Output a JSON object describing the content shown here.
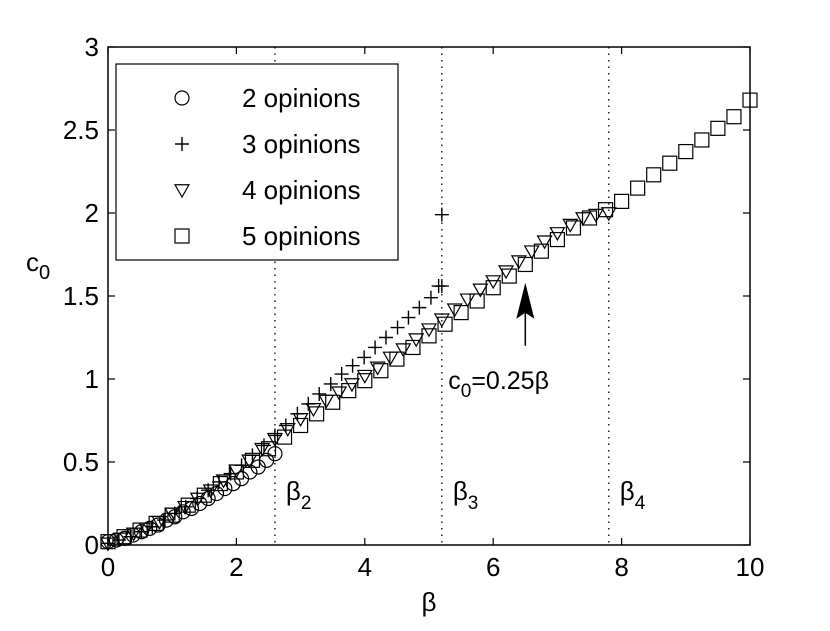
{
  "chart_data": {
    "type": "scatter",
    "xlabel": "β",
    "ylabel": "c",
    "ylabel_sub": "0",
    "xlim": [
      0,
      10
    ],
    "ylim": [
      0,
      3
    ],
    "x_ticks": [
      {
        "value": 0,
        "label": "0"
      },
      {
        "value": 2,
        "label": "2"
      },
      {
        "value": 4,
        "label": "4"
      },
      {
        "value": 6,
        "label": "6"
      },
      {
        "value": 8,
        "label": "8"
      },
      {
        "value": 10,
        "label": "10"
      }
    ],
    "y_ticks": [
      {
        "value": 0,
        "label": "0"
      },
      {
        "value": 0.5,
        "label": "0.5"
      },
      {
        "value": 1,
        "label": "1"
      },
      {
        "value": 1.5,
        "label": "1.5"
      },
      {
        "value": 2,
        "label": "2"
      },
      {
        "value": 2.5,
        "label": "2.5"
      },
      {
        "value": 3,
        "label": "3"
      }
    ],
    "grid": false,
    "legend_position": "top-left",
    "series": [
      {
        "name": "2 opinions",
        "marker": "circle",
        "x": [
          0.0,
          0.13,
          0.26,
          0.39,
          0.52,
          0.65,
          0.78,
          0.91,
          1.04,
          1.17,
          1.3,
          1.43,
          1.56,
          1.69,
          1.82,
          1.95,
          2.08,
          2.21,
          2.34,
          2.47,
          2.6
        ],
        "y": [
          0.02,
          0.03,
          0.04,
          0.06,
          0.08,
          0.1,
          0.12,
          0.15,
          0.17,
          0.2,
          0.22,
          0.25,
          0.28,
          0.31,
          0.34,
          0.37,
          0.4,
          0.44,
          0.47,
          0.51,
          0.55
        ]
      },
      {
        "name": "3 opinions",
        "marker": "plus",
        "x": [
          0.0,
          0.17,
          0.35,
          0.52,
          0.69,
          0.87,
          1.04,
          1.21,
          1.39,
          1.56,
          1.73,
          1.91,
          2.08,
          2.25,
          2.43,
          2.6,
          2.77,
          2.95,
          3.12,
          3.29,
          3.47,
          3.64,
          3.81,
          3.99,
          4.16,
          4.33,
          4.51,
          4.68,
          4.85,
          5.03,
          5.2
        ],
        "y": [
          0.01,
          0.03,
          0.05,
          0.08,
          0.11,
          0.15,
          0.19,
          0.23,
          0.28,
          0.33,
          0.38,
          0.43,
          0.48,
          0.54,
          0.6,
          0.66,
          0.72,
          0.79,
          0.85,
          0.91,
          0.97,
          1.03,
          1.08,
          1.13,
          1.19,
          1.25,
          1.31,
          1.37,
          1.43,
          1.49,
          1.56
        ]
      },
      {
        "name": "4 opinions",
        "marker": "triangle-down",
        "x": [
          0.0,
          0.2,
          0.4,
          0.6,
          0.8,
          1.0,
          1.2,
          1.4,
          1.6,
          1.8,
          2.0,
          2.2,
          2.4,
          2.6,
          2.8,
          3.0,
          3.2,
          3.4,
          3.6,
          3.8,
          4.0,
          4.2,
          4.4,
          4.6,
          4.8,
          5.0,
          5.2,
          5.4,
          5.6,
          5.8,
          6.0,
          6.2,
          6.4,
          6.6,
          6.8,
          7.0,
          7.2,
          7.4,
          7.6,
          7.8
        ],
        "y": [
          0.01,
          0.04,
          0.07,
          0.1,
          0.14,
          0.19,
          0.23,
          0.28,
          0.33,
          0.39,
          0.45,
          0.51,
          0.58,
          0.64,
          0.7,
          0.76,
          0.82,
          0.87,
          0.92,
          0.97,
          1.02,
          1.07,
          1.13,
          1.18,
          1.24,
          1.3,
          1.36,
          1.42,
          1.48,
          1.54,
          1.59,
          1.65,
          1.71,
          1.77,
          1.83,
          1.88,
          1.93,
          1.97,
          1.99,
          2.0
        ]
      },
      {
        "name": "5 opinions",
        "marker": "square",
        "x": [
          0.0,
          0.25,
          0.5,
          0.75,
          1.0,
          1.25,
          1.5,
          1.75,
          2.0,
          2.25,
          2.5,
          2.75,
          3.0,
          3.25,
          3.5,
          3.75,
          4.0,
          4.25,
          4.5,
          4.75,
          5.0,
          5.25,
          5.5,
          5.75,
          6.0,
          6.25,
          6.5,
          6.75,
          7.0,
          7.25,
          7.5,
          7.75,
          8.0,
          8.25,
          8.5,
          8.75,
          9.0,
          9.25,
          9.5,
          9.75,
          10.0
        ],
        "y": [
          0.02,
          0.05,
          0.09,
          0.13,
          0.18,
          0.24,
          0.3,
          0.37,
          0.44,
          0.51,
          0.58,
          0.65,
          0.72,
          0.79,
          0.86,
          0.93,
          0.99,
          1.05,
          1.12,
          1.19,
          1.26,
          1.33,
          1.4,
          1.47,
          1.55,
          1.62,
          1.69,
          1.77,
          1.84,
          1.91,
          1.97,
          2.02,
          2.07,
          2.15,
          2.23,
          2.3,
          2.37,
          2.44,
          2.51,
          2.58,
          2.68
        ]
      }
    ],
    "extra_points": [
      {
        "series": "3 opinions",
        "x": 5.15,
        "y": 1.56
      },
      {
        "series": "3 opinions",
        "x": 5.2,
        "y": 1.99
      }
    ],
    "vlines": [
      {
        "x": 2.6,
        "label": "β",
        "sub": "2"
      },
      {
        "x": 5.2,
        "label": "β",
        "sub": "3"
      },
      {
        "x": 7.8,
        "label": "β",
        "sub": "4"
      }
    ],
    "annotation": {
      "text_main": "c",
      "text_sub": "0",
      "text_rest": "=0.25β",
      "arrow_x": 6.5,
      "arrow_tip_y": 1.58,
      "arrow_tail_y": 1.2,
      "label_x": 5.3,
      "label_y": 1.0
    }
  }
}
